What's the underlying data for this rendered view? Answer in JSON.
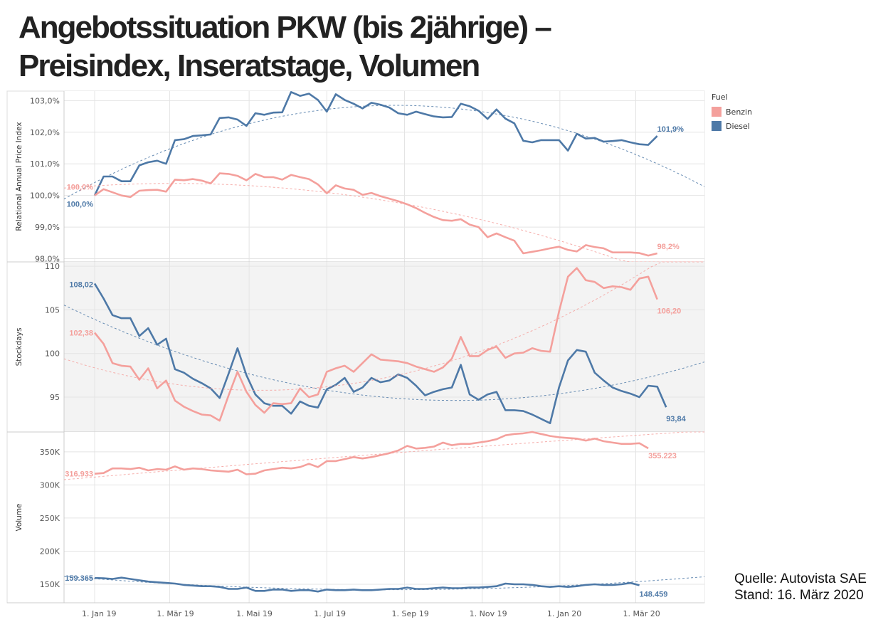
{
  "title": {
    "line1": "Angebotssituation PKW (bis 2jährige) –",
    "line2": "Preisindex, Inseratstage, Volumen"
  },
  "source": {
    "line1": "Quelle: Autovista SAE",
    "line2": "Stand: 16. März 2020"
  },
  "legend": {
    "title": "Fuel",
    "items": [
      {
        "label": "Benzin",
        "color": "#F4A09C"
      },
      {
        "label": "Diesel",
        "color": "#4E79A7"
      }
    ]
  },
  "chart_data": [
    {
      "type": "line",
      "ylabel": "Relational Annual Price Index",
      "ylim": [
        97.9,
        103.3
      ],
      "yticks": [
        98,
        99,
        100,
        101,
        102,
        103
      ],
      "ytick_labels": [
        "98,0%",
        "99,0%",
        "100,0%",
        "101,0%",
        "102,0%",
        "103,0%"
      ],
      "x_axis": "weeks since 1 Jan 2019",
      "series": [
        {
          "name": "Diesel",
          "color": "#4E79A7",
          "values": [
            100.0,
            100.6,
            100.6,
            100.45,
            100.45,
            100.95,
            101.05,
            101.1,
            101.0,
            101.75,
            101.78,
            101.88,
            101.9,
            101.93,
            102.45,
            102.47,
            102.4,
            102.2,
            102.6,
            102.55,
            102.62,
            102.63,
            103.27,
            103.15,
            103.22,
            103.02,
            102.65,
            103.2,
            103.02,
            102.9,
            102.75,
            102.93,
            102.87,
            102.78,
            102.6,
            102.55,
            102.65,
            102.57,
            102.5,
            102.47,
            102.48,
            102.9,
            102.82,
            102.68,
            102.42,
            102.72,
            102.43,
            102.28,
            101.73,
            101.68,
            101.75,
            101.75,
            101.75,
            101.42,
            101.95,
            101.8,
            101.82,
            101.7,
            101.72,
            101.75,
            101.68,
            101.62,
            101.6,
            101.88
          ],
          "end_label": "101,9%",
          "start_label": "100,0%"
        },
        {
          "name": "Benzin",
          "color": "#F4A09C",
          "values": [
            100.0,
            100.2,
            100.1,
            100.0,
            99.95,
            100.15,
            100.17,
            100.18,
            100.12,
            100.5,
            100.48,
            100.52,
            100.47,
            100.38,
            100.7,
            100.68,
            100.62,
            100.48,
            100.68,
            100.58,
            100.58,
            100.5,
            100.65,
            100.58,
            100.52,
            100.35,
            100.07,
            100.32,
            100.22,
            100.18,
            100.02,
            100.08,
            99.98,
            99.9,
            99.82,
            99.72,
            99.6,
            99.45,
            99.32,
            99.22,
            99.2,
            99.25,
            99.08,
            99.0,
            98.68,
            98.8,
            98.68,
            98.57,
            98.17,
            98.22,
            98.27,
            98.33,
            98.38,
            98.28,
            98.23,
            98.43,
            98.37,
            98.33,
            98.2,
            98.2,
            98.2,
            98.18,
            98.1,
            98.17
          ],
          "end_label": "98,2%",
          "start_label": "100,0%"
        }
      ]
    },
    {
      "type": "line",
      "ylabel": "Stockdays",
      "ylim": [
        91,
        110.5
      ],
      "yticks": [
        95,
        100,
        105,
        110
      ],
      "ytick_labels": [
        "95",
        "100",
        "105",
        "110"
      ],
      "x_axis": "weeks since 1 Jan 2019",
      "series": [
        {
          "name": "Diesel",
          "color": "#4E79A7",
          "values": [
            108.02,
            106.3,
            104.4,
            104.05,
            104.05,
            102.0,
            102.9,
            101.0,
            101.7,
            98.2,
            97.8,
            97.1,
            96.6,
            96.0,
            94.9,
            97.7,
            100.6,
            97.5,
            95.3,
            94.3,
            94.0,
            94.0,
            93.1,
            94.5,
            94.0,
            93.8,
            95.9,
            96.4,
            97.2,
            95.6,
            96.1,
            97.2,
            96.7,
            96.9,
            97.6,
            97.2,
            96.3,
            95.2,
            95.6,
            95.9,
            96.1,
            98.7,
            95.3,
            94.7,
            95.3,
            95.6,
            93.5,
            93.5,
            93.4,
            93.0,
            92.5,
            92.0,
            96.1,
            99.2,
            100.4,
            100.2,
            97.8,
            96.9,
            96.1,
            95.7,
            95.4,
            95.0,
            96.3,
            96.2,
            93.84
          ],
          "end_label": "93,84",
          "start_label": "108,02"
        },
        {
          "name": "Benzin",
          "color": "#F4A09C",
          "values": [
            102.38,
            101.1,
            98.9,
            98.6,
            98.5,
            97.0,
            98.3,
            96.0,
            96.9,
            94.6,
            93.9,
            93.4,
            93.0,
            92.9,
            92.3,
            95.2,
            97.9,
            95.6,
            94.1,
            93.2,
            94.3,
            94.2,
            94.3,
            96.0,
            95.0,
            95.3,
            97.9,
            98.3,
            98.6,
            97.9,
            98.9,
            99.9,
            99.3,
            99.2,
            99.1,
            98.9,
            98.5,
            98.2,
            97.9,
            98.4,
            99.4,
            101.9,
            99.7,
            99.7,
            100.4,
            100.8,
            99.5,
            100.0,
            100.1,
            100.6,
            100.3,
            100.2,
            104.8,
            108.8,
            109.8,
            108.4,
            108.2,
            107.5,
            107.7,
            107.6,
            107.3,
            108.6,
            108.8,
            106.2
          ],
          "end_label": "106,20",
          "start_label": "102,38"
        }
      ]
    },
    {
      "type": "line",
      "ylabel": "Volume",
      "ylim": [
        122000,
        380000
      ],
      "yticks": [
        150000,
        200000,
        250000,
        300000,
        350000
      ],
      "ytick_labels": [
        "150K",
        "200K",
        "250K",
        "300K",
        "350K"
      ],
      "x_axis": "weeks since 1 Jan 2019",
      "series": [
        {
          "name": "Benzin",
          "color": "#F4A09C",
          "values": [
            316933,
            318000,
            325000,
            325000,
            324000,
            326000,
            322000,
            324000,
            323000,
            328000,
            323000,
            325000,
            324000,
            322000,
            321000,
            320000,
            323000,
            316000,
            317000,
            322000,
            324000,
            326000,
            325000,
            327000,
            332000,
            327000,
            336000,
            336000,
            339000,
            342000,
            340000,
            342000,
            345000,
            348000,
            352000,
            359000,
            355000,
            356000,
            358000,
            364000,
            360000,
            362000,
            362000,
            364000,
            366000,
            369000,
            375000,
            377000,
            378000,
            380000,
            377000,
            374000,
            372000,
            371000,
            370000,
            367000,
            370000,
            366000,
            364000,
            362000,
            362000,
            363000,
            355223
          ],
          "end_label": "355.223",
          "start_label": "316.933"
        },
        {
          "name": "Diesel",
          "color": "#4E79A7",
          "values": [
            159365,
            159000,
            158000,
            160000,
            158000,
            156000,
            154000,
            153000,
            152000,
            151000,
            149000,
            148000,
            147000,
            147000,
            146000,
            143000,
            143000,
            145000,
            140000,
            140000,
            142000,
            142000,
            140000,
            141000,
            141000,
            139000,
            142000,
            141000,
            141000,
            142000,
            141000,
            141000,
            142000,
            143000,
            143000,
            145000,
            143000,
            143000,
            144000,
            145000,
            144000,
            144000,
            145000,
            145000,
            146000,
            147000,
            151000,
            150000,
            150000,
            149000,
            147000,
            146000,
            147000,
            146000,
            147000,
            149000,
            150000,
            149000,
            149000,
            150000,
            152000,
            148459
          ],
          "end_label": "148.459",
          "start_label": "159.365"
        }
      ]
    },
    {
      "type": "axis",
      "x_ticks": [
        "1. Jan 19",
        "1. Mär 19",
        "1. Mai 19",
        "1. Jul 19",
        "1. Sep 19",
        "1. Nov 19",
        "1. Jan 20",
        "1. Mär 20"
      ]
    }
  ]
}
